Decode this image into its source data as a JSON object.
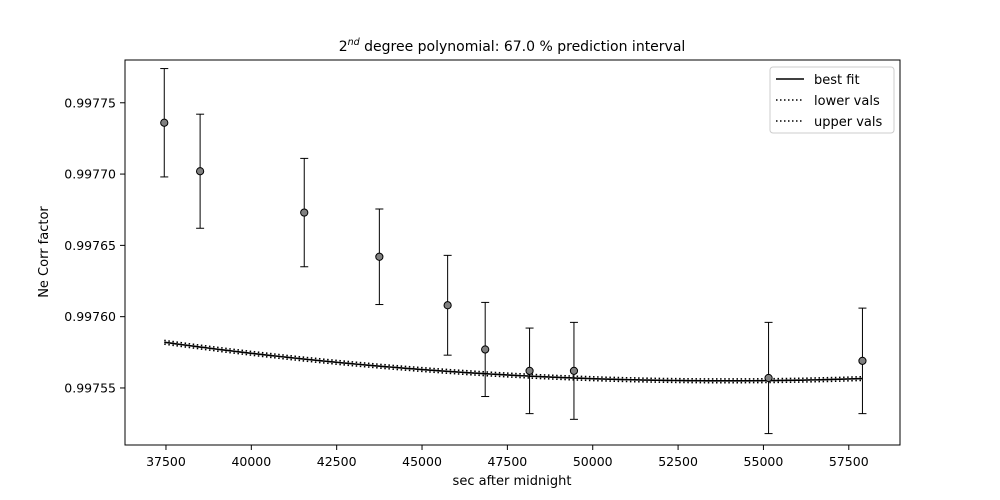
{
  "chart_data": {
    "type": "scatter",
    "title_prefix": "2",
    "title_sup": "nd",
    "title_rest": " degree polynomial: 67.0 % prediction interval",
    "xlabel": "sec after midnight",
    "ylabel": "Ne Corr factor",
    "xlim": [
      36300,
      59000
    ],
    "ylim": [
      0.99751,
      0.99778
    ],
    "xticks": [
      37500,
      40000,
      42500,
      45000,
      47500,
      50000,
      52500,
      55000,
      57500
    ],
    "yticks": [
      0.99755,
      0.9976,
      0.99765,
      0.9977,
      0.99775
    ],
    "ytick_labels": [
      "0.99755",
      "0.99760",
      "0.99765",
      "0.99770",
      "0.99775"
    ],
    "points": {
      "x": [
        37450,
        38500,
        41550,
        43750,
        45750,
        46850,
        48150,
        49450,
        55150,
        57900
      ],
      "y": [
        0.997736,
        0.997702,
        0.997673,
        0.997642,
        0.997608,
        0.997577,
        0.997562,
        0.997562,
        0.997557,
        0.997569
      ],
      "err": [
        3.8e-05,
        4e-05,
        3.8e-05,
        3.35e-05,
        3.5e-05,
        3.3e-05,
        3e-05,
        3.4e-05,
        3.9e-05,
        3.7e-05
      ],
      "color": "#808080"
    },
    "fit": {
      "type": "quadratic",
      "vertex_x": 53900,
      "vertex_y": 0.997555,
      "curvature": 1e-13,
      "band": 1.3e-06
    },
    "legend": {
      "placement": "top-right",
      "entries": [
        {
          "label": "best fit",
          "style": "solid"
        },
        {
          "label": "lower vals",
          "style": "dotted"
        },
        {
          "label": "upper vals",
          "style": "dotted"
        }
      ]
    }
  }
}
